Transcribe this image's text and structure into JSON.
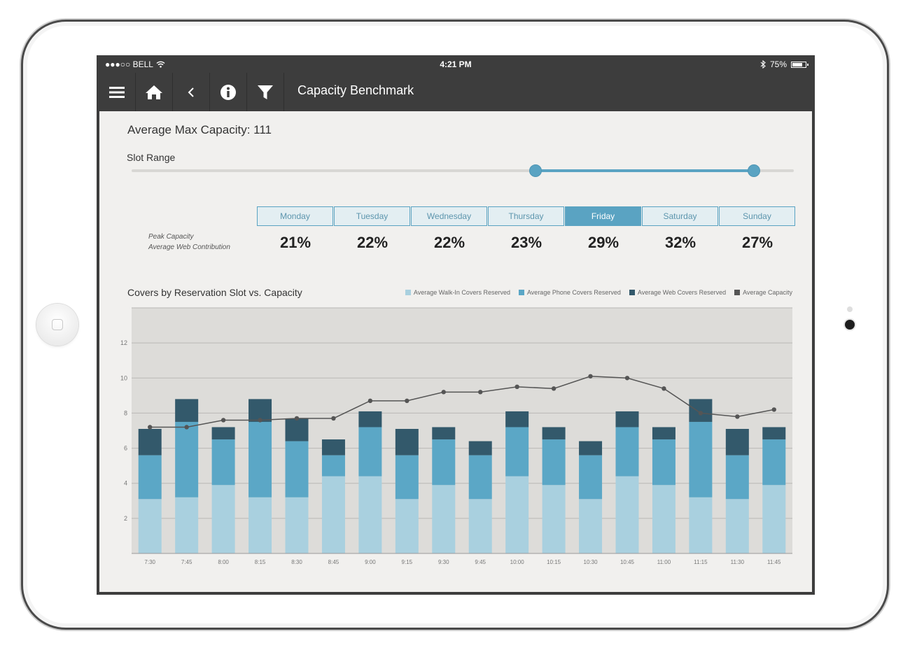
{
  "status_bar": {
    "carrier": "●●●○○ BELL",
    "time": "4:21 PM",
    "battery": "75%"
  },
  "toolbar": {
    "title": "Capacity Benchmark",
    "icons": [
      "menu-icon",
      "home-icon",
      "back-icon",
      "info-icon",
      "filter-icon"
    ]
  },
  "summary": {
    "avg_max_capacity": "Average Max Capacity: 111"
  },
  "slot_range": {
    "label": "Slot Range",
    "low_fraction": 0.61,
    "high_fraction": 0.94
  },
  "days": {
    "peak_label_1": "Peak Capacity",
    "peak_label_2": "Average Web Contribution",
    "items": [
      {
        "name": "Monday",
        "value": "21%",
        "active": false
      },
      {
        "name": "Tuesday",
        "value": "22%",
        "active": false
      },
      {
        "name": "Wednesday",
        "value": "22%",
        "active": false
      },
      {
        "name": "Thursday",
        "value": "23%",
        "active": false
      },
      {
        "name": "Friday",
        "value": "29%",
        "active": true
      },
      {
        "name": "Saturday",
        "value": "32%",
        "active": false
      },
      {
        "name": "Sunday",
        "value": "27%",
        "active": false
      }
    ]
  },
  "colors": {
    "accent": "#5aa3c2",
    "walk_in": "#a9d0df",
    "phone": "#5ba7c6",
    "web": "#33596b",
    "capacity": "#555555",
    "plot_bg": "#dddcd9"
  },
  "chart_data": {
    "type": "bar",
    "title": "Covers by Reservation Slot vs. Capacity",
    "stacked": true,
    "categories": [
      "7:30",
      "7:45",
      "8:00",
      "8:15",
      "8:30",
      "8:45",
      "9:00",
      "9:15",
      "9:30",
      "9:45",
      "10:00",
      "10:15",
      "10:30",
      "10:45",
      "11:00",
      "11:15",
      "11:30",
      "11:45"
    ],
    "series": [
      {
        "name": "Average Walk-In Covers Reserved",
        "type": "bar",
        "color": "#a9d0df",
        "values": [
          3.1,
          3.2,
          3.9,
          3.2,
          3.2,
          4.4,
          4.4,
          3.1,
          3.9,
          3.1,
          4.4,
          3.9,
          3.1,
          4.4,
          3.9,
          3.2,
          3.1,
          3.9
        ]
      },
      {
        "name": "Average Phone Covers Reserved",
        "type": "bar",
        "color": "#5ba7c6",
        "values": [
          2.5,
          4.3,
          2.6,
          4.3,
          3.2,
          1.2,
          2.8,
          2.5,
          2.6,
          2.5,
          2.8,
          2.6,
          2.5,
          2.8,
          2.6,
          4.3,
          2.5,
          2.6
        ]
      },
      {
        "name": "Average Web Covers Reserved",
        "type": "bar",
        "color": "#33596b",
        "values": [
          1.5,
          1.3,
          0.7,
          1.3,
          1.3,
          0.9,
          0.9,
          1.5,
          0.7,
          0.8,
          0.9,
          0.7,
          0.8,
          0.9,
          0.7,
          1.3,
          1.5,
          0.7
        ]
      },
      {
        "name": "Average Capacity",
        "type": "line",
        "color": "#555555",
        "values": [
          7.2,
          7.2,
          7.6,
          7.6,
          7.7,
          7.7,
          8.7,
          8.7,
          9.2,
          9.2,
          9.5,
          9.4,
          10.1,
          10.0,
          9.4,
          8.0,
          7.8,
          8.2
        ]
      }
    ],
    "yticks": [
      2,
      4,
      6,
      8,
      10,
      12
    ],
    "ylim": [
      0,
      14
    ],
    "grid": true,
    "legend": "top-right"
  }
}
